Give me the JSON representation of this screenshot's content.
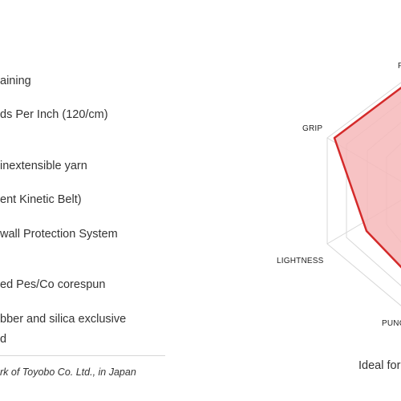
{
  "specs": {
    "line1": "aining",
    "line2": "ds Per Inch (120/cm)",
    "line3": "inextensible yarn",
    "line4": "ent Kinetic Belt)",
    "line5": "wall Protection System",
    "line6": "ed Pes/Co corespun",
    "line7": "bber and silica exclusive",
    "line8": "d"
  },
  "footnote": "rk of Toyobo Co. Ltd., in Japan",
  "chart_data": {
    "type": "radar",
    "axes": [
      "P",
      "GRIP",
      "LIGHTNESS",
      "PUNC"
    ],
    "axis_labels_visible": {
      "top": "P",
      "grip": "GRIP",
      "lightness": "LIGHTNESS",
      "bottom": "PUNC"
    },
    "caption": "Ideal for",
    "series_color": "#d42a2a",
    "fill_color": "#f6b9ba"
  }
}
